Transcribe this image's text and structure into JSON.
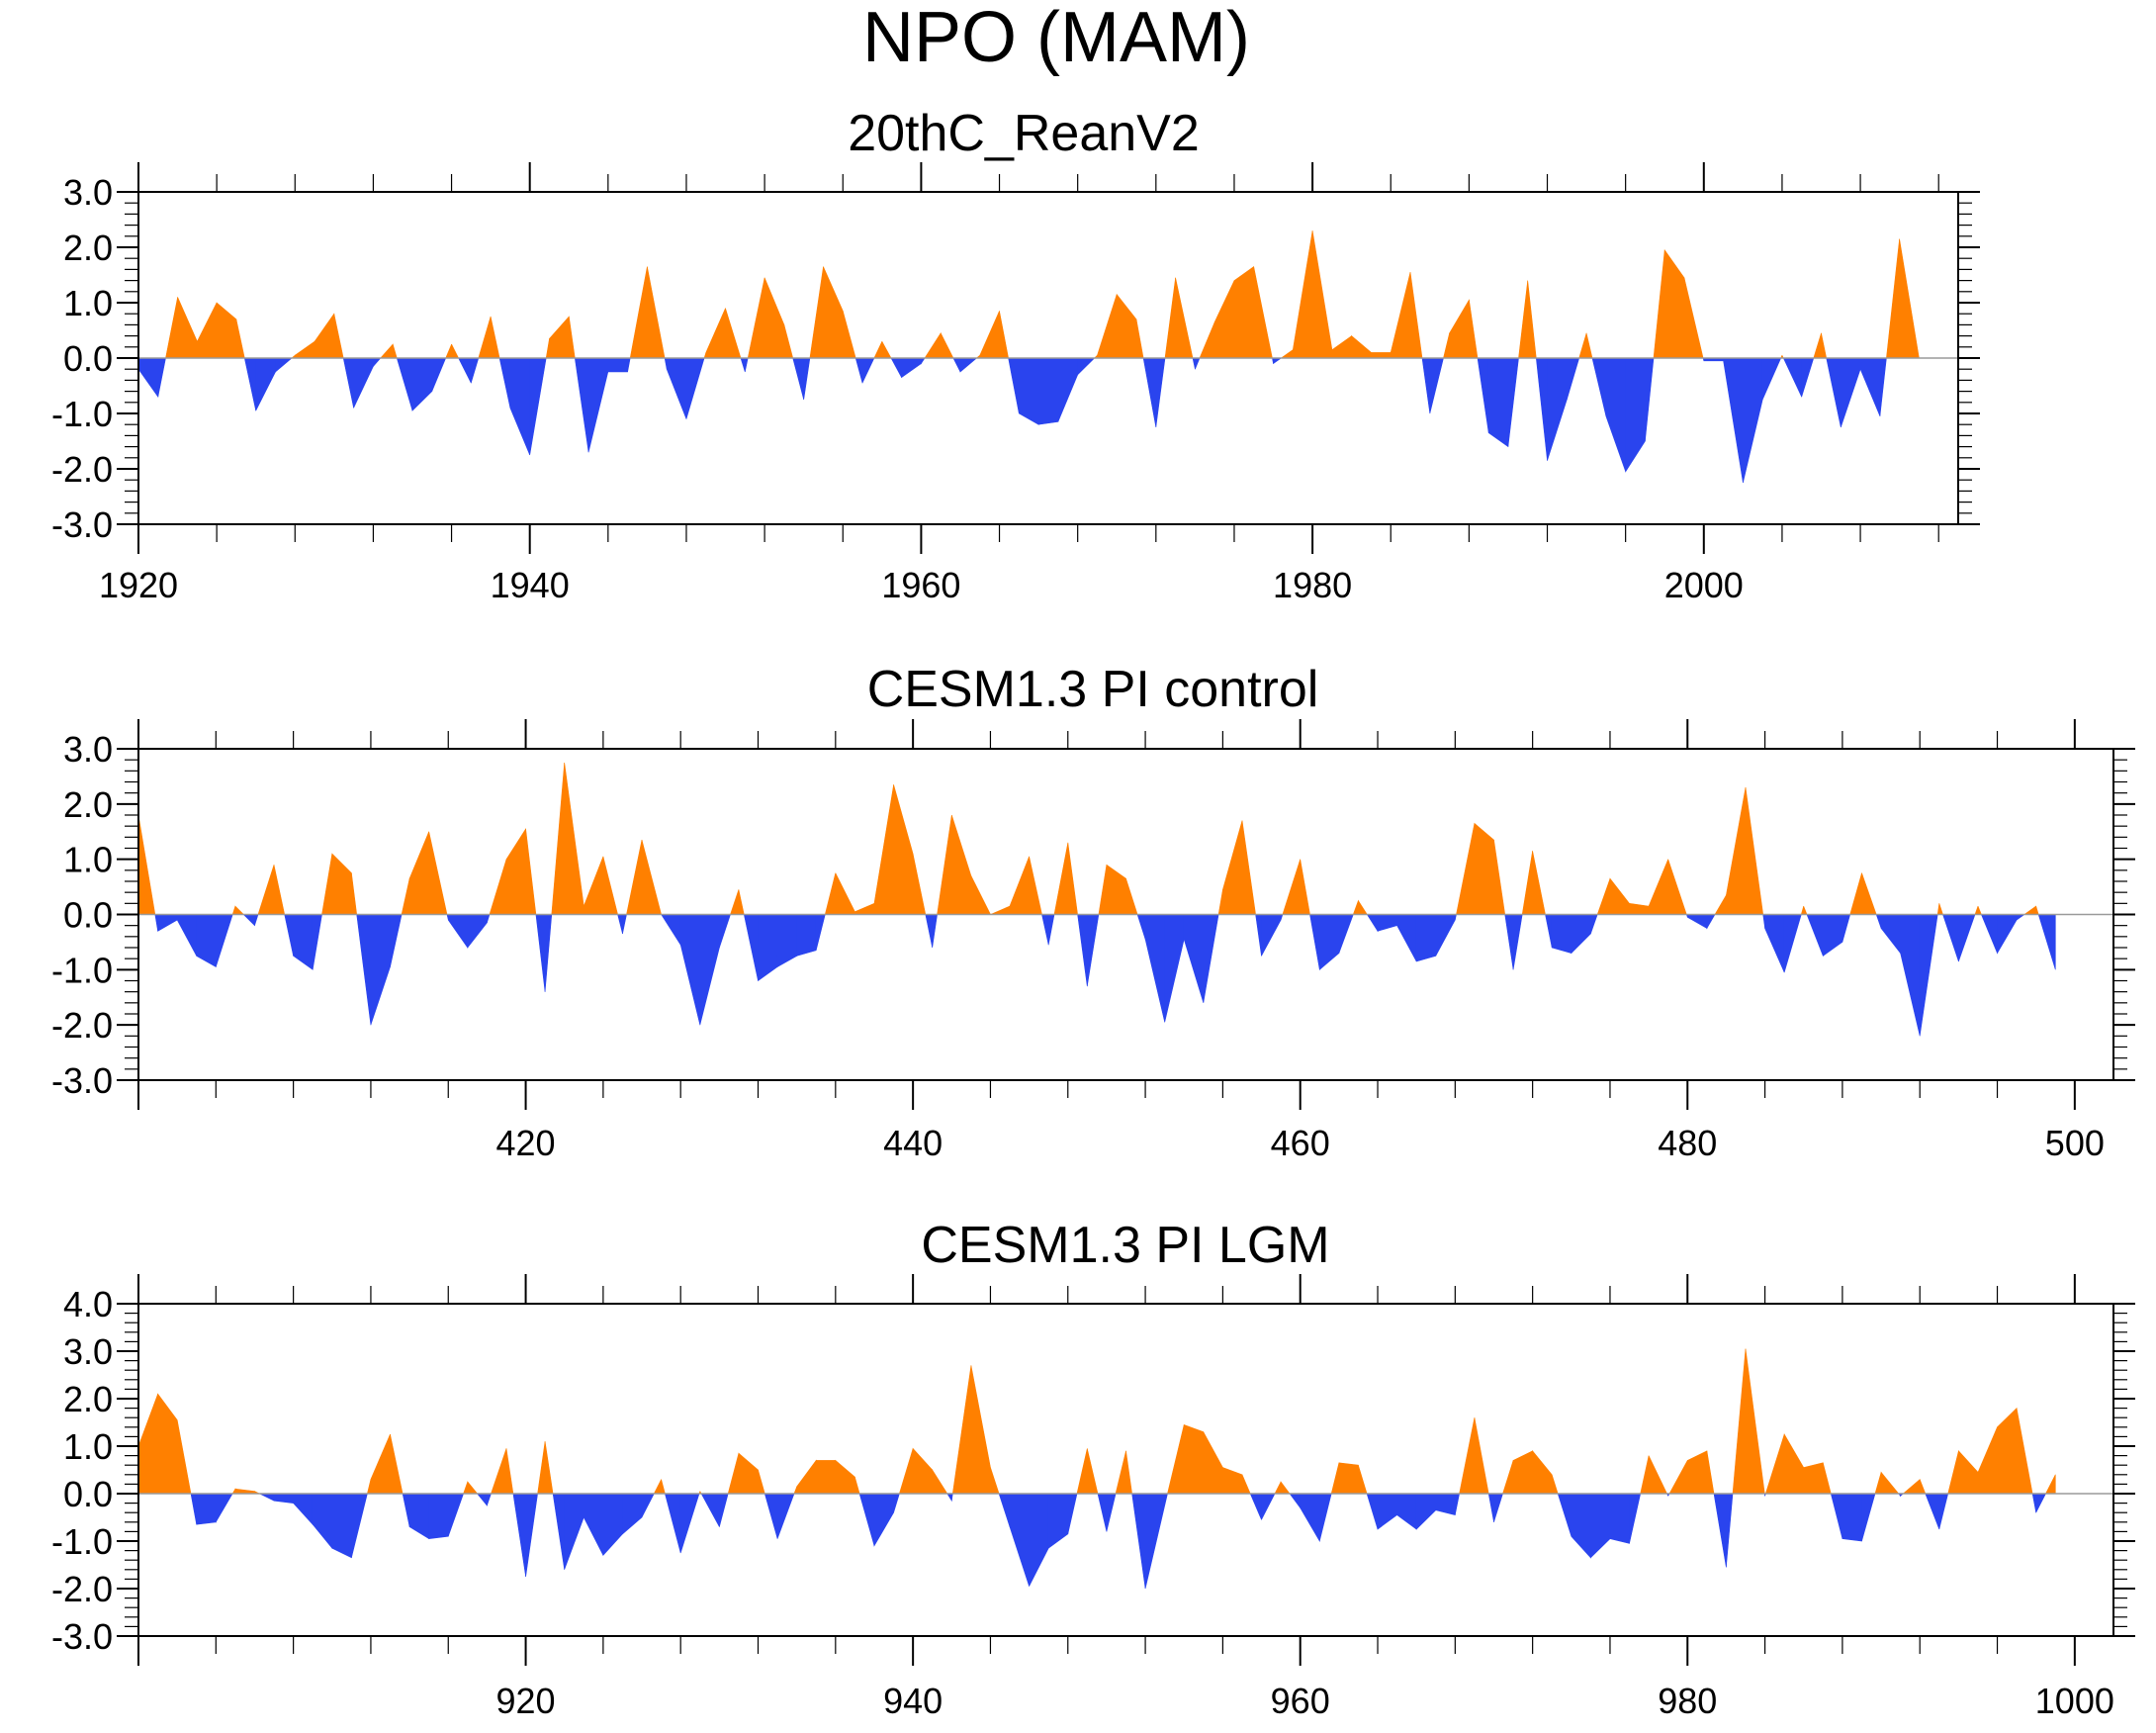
{
  "title": "NPO (MAM)",
  "colors": {
    "positive": "#ff8000",
    "negative": "#2a44ee",
    "axis": "#000000"
  },
  "chart_data": [
    {
      "type": "area",
      "title": "20thC_ReanV2",
      "xlim": [
        1920,
        2013
      ],
      "ylim": [
        -3,
        3
      ],
      "xticks": [
        1920,
        1940,
        1960,
        1980,
        2000
      ],
      "xtick_labels": [
        "1920",
        "1940",
        "1960",
        "1980",
        "2000"
      ],
      "yticks": [
        3,
        2,
        1,
        0,
        -1,
        -2,
        -3
      ],
      "ytick_labels": [
        "3.0",
        "2.0",
        "1.0",
        "0.0",
        "-1.0",
        "-2.0",
        "-3.0"
      ],
      "x_start": 1920,
      "values": [
        -0.2,
        -0.7,
        1.1,
        0.3,
        1.0,
        0.7,
        -0.95,
        -0.25,
        0.05,
        0.3,
        0.8,
        -0.9,
        -0.15,
        0.25,
        -0.95,
        -0.6,
        0.25,
        -0.45,
        0.75,
        -0.9,
        -1.75,
        0.35,
        0.75,
        -1.7,
        -0.25,
        -0.25,
        1.65,
        -0.2,
        -1.1,
        0.1,
        0.9,
        -0.25,
        1.45,
        0.6,
        -0.75,
        1.65,
        0.85,
        -0.45,
        0.3,
        -0.35,
        -0.1,
        0.45,
        -0.25,
        0.05,
        0.85,
        -1.0,
        -1.2,
        -1.15,
        -0.3,
        0.05,
        1.15,
        0.7,
        -1.25,
        1.45,
        -0.2,
        0.65,
        1.4,
        1.65,
        -0.1,
        0.15,
        2.3,
        0.15,
        0.4,
        0.1,
        0.1,
        1.55,
        -1.0,
        0.45,
        1.05,
        -1.35,
        -1.6,
        1.4,
        -1.85,
        -0.75,
        0.45,
        -1.05,
        -2.05,
        -1.5,
        1.95,
        1.45,
        -0.05,
        -0.05,
        -2.25,
        -0.75,
        0.05,
        -0.7,
        0.45,
        -1.25,
        -0.2,
        -1.05,
        2.15,
        0.0
      ]
    },
    {
      "type": "area",
      "title": "CESM1.3 PI control",
      "xlim": [
        400,
        502
      ],
      "ylim": [
        -3,
        3
      ],
      "xticks": [
        420,
        440,
        460,
        480,
        500
      ],
      "xtick_labels": [
        "420",
        "440",
        "460",
        "480",
        "500"
      ],
      "yticks": [
        3,
        2,
        1,
        0,
        -1,
        -2,
        -3
      ],
      "ytick_labels": [
        "3.0",
        "2.0",
        "1.0",
        "0.0",
        "-1.0",
        "-2.0",
        "-3.0"
      ],
      "x_start": 400,
      "values": [
        1.8,
        -0.3,
        -0.1,
        -0.75,
        -0.95,
        0.15,
        -0.2,
        0.9,
        -0.75,
        -1.0,
        1.1,
        0.75,
        -2.0,
        -0.95,
        0.65,
        1.5,
        -0.1,
        -0.6,
        -0.15,
        1.0,
        1.55,
        -1.4,
        2.75,
        0.15,
        1.05,
        -0.35,
        1.35,
        0.0,
        -0.55,
        -2.0,
        -0.6,
        0.45,
        -1.2,
        -0.95,
        -0.75,
        -0.65,
        0.75,
        0.05,
        0.2,
        2.35,
        1.1,
        -0.6,
        1.8,
        0.7,
        0.0,
        0.15,
        1.05,
        -0.55,
        1.3,
        -1.3,
        0.9,
        0.65,
        -0.45,
        -1.95,
        -0.45,
        -1.6,
        0.45,
        1.7,
        -0.75,
        -0.1,
        1.0,
        -1.0,
        -0.7,
        0.25,
        -0.3,
        -0.2,
        -0.85,
        -0.75,
        -0.1,
        1.65,
        1.35,
        -1.0,
        1.15,
        -0.6,
        -0.7,
        -0.35,
        0.65,
        0.2,
        0.15,
        1.0,
        -0.05,
        -0.25,
        0.35,
        2.3,
        -0.25,
        -1.05,
        0.15,
        -0.75,
        -0.5,
        0.75,
        -0.25,
        -0.7,
        -2.2,
        0.2,
        -0.85,
        0.15,
        -0.7,
        -0.1,
        0.15,
        -1.0
      ]
    },
    {
      "type": "area",
      "title": "CESM1.3 PI LGM",
      "xlim": [
        900,
        1002
      ],
      "ylim": [
        -3,
        4
      ],
      "xticks": [
        920,
        940,
        960,
        980,
        1000
      ],
      "xtick_labels": [
        "920",
        "940",
        "960",
        "980",
        "1000"
      ],
      "yticks": [
        4,
        3,
        2,
        1,
        0,
        -1,
        -2,
        -3
      ],
      "ytick_labels": [
        "4.0",
        "3.0",
        "2.0",
        "1.0",
        "0.0",
        "-1.0",
        "-2.0",
        "-3.0"
      ],
      "x_start": 900,
      "values": [
        1.0,
        2.1,
        1.55,
        -0.65,
        -0.6,
        0.1,
        0.05,
        -0.15,
        -0.2,
        -0.65,
        -1.15,
        -1.35,
        0.3,
        1.25,
        -0.7,
        -0.95,
        -0.9,
        0.25,
        -0.25,
        0.95,
        -1.75,
        1.1,
        -1.6,
        -0.5,
        -1.3,
        -0.85,
        -0.5,
        0.3,
        -1.25,
        0.05,
        -0.7,
        0.85,
        0.5,
        -0.95,
        0.15,
        0.7,
        0.7,
        0.35,
        -1.1,
        -0.4,
        0.95,
        0.5,
        -0.15,
        2.7,
        0.55,
        -0.7,
        -1.95,
        -1.15,
        -0.85,
        0.95,
        -0.8,
        0.9,
        -2.0,
        -0.25,
        1.45,
        1.3,
        0.55,
        0.4,
        -0.55,
        0.25,
        -0.3,
        -1.0,
        0.65,
        0.6,
        -0.75,
        -0.45,
        -0.75,
        -0.35,
        -0.45,
        1.6,
        -0.6,
        0.7,
        0.9,
        0.4,
        -0.9,
        -1.35,
        -0.95,
        -1.05,
        0.8,
        -0.05,
        0.7,
        0.9,
        -1.55,
        3.05,
        -0.05,
        1.25,
        0.55,
        0.65,
        -0.95,
        -1.0,
        0.45,
        -0.05,
        0.3,
        -0.75,
        0.9,
        0.45,
        1.4,
        1.8,
        -0.4,
        0.4
      ]
    }
  ]
}
